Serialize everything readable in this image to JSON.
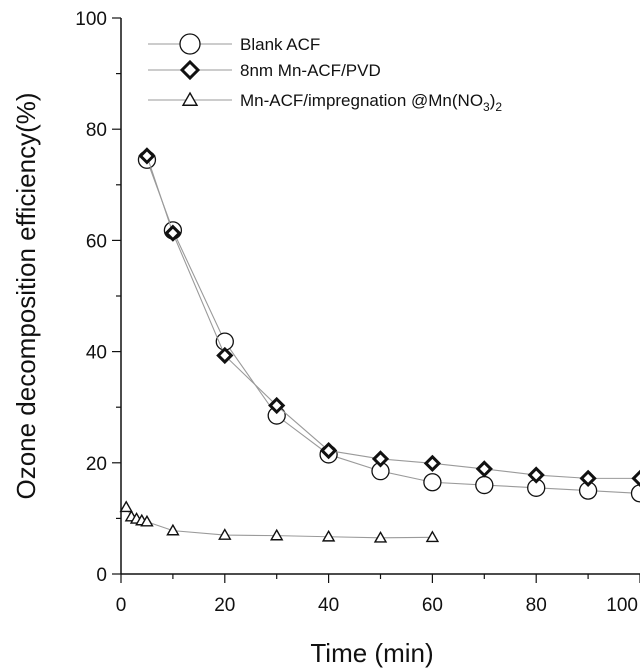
{
  "chart_data": {
    "type": "scatter",
    "title": "",
    "xlabel": "Time (min)",
    "ylabel": "Ozone decomposition efficiency(%)",
    "xlim": [
      0,
      100
    ],
    "ylim": [
      0,
      100
    ],
    "xticks": [
      0,
      20,
      40,
      60,
      80,
      100
    ],
    "yticks": [
      0,
      20,
      40,
      60,
      80,
      100
    ],
    "grid": false,
    "legend_position": "top-left",
    "series": [
      {
        "name": "Blank ACF",
        "marker": "circle",
        "x": [
          5,
          10,
          20,
          30,
          40,
          50,
          60,
          70,
          80,
          90,
          100
        ],
        "y": [
          74.5,
          61.8,
          41.8,
          28.5,
          21.5,
          18.5,
          16.5,
          16.0,
          15.5,
          15.0,
          14.5
        ]
      },
      {
        "name": "8nm Mn-ACF/PVD",
        "marker": "diamond",
        "x": [
          5,
          10,
          20,
          30,
          40,
          50,
          60,
          70,
          80,
          90,
          100
        ],
        "y": [
          75.2,
          61.3,
          39.3,
          30.3,
          22.2,
          20.7,
          19.9,
          18.9,
          17.8,
          17.2,
          17.2
        ]
      },
      {
        "name": "Mn-ACF/impregnation @Mn(NO",
        "name_sub": "3",
        "name_tail": ")",
        "name_sub2": "2",
        "marker": "triangle",
        "x": [
          1,
          2,
          3,
          4,
          5,
          10,
          20,
          30,
          40,
          50,
          60
        ],
        "y": [
          12.0,
          10.3,
          9.9,
          9.6,
          9.4,
          7.8,
          7.0,
          6.9,
          6.7,
          6.5,
          6.6
        ]
      }
    ],
    "colors": {
      "line": "#9a9a9a",
      "marker": "#111111",
      "axis": "#111111"
    }
  }
}
